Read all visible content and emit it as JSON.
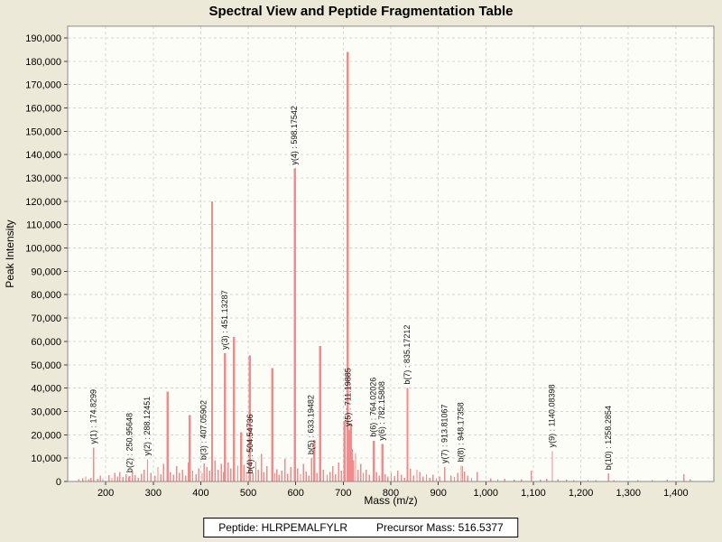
{
  "page": {
    "background": "#ece9d8"
  },
  "header": {
    "title": "Spectral View and Peptide Fragmentation Table"
  },
  "footer": {
    "peptide": "Peptide: HLRPEMALFYLR",
    "precursor": "Precursor Mass: 516.5377"
  },
  "chart_data": {
    "type": "bar",
    "subtype": "mass-spectrum-stick-plot",
    "title": "Spectral View and Peptide Fragmentation Table",
    "xlabel": "Mass (m/z)",
    "ylabel": "Peak Intensity",
    "xlim": [
      120,
      1480
    ],
    "ylim": [
      0,
      195000
    ],
    "x_ticks": [
      200,
      300,
      400,
      500,
      600,
      700,
      800,
      900,
      1000,
      1100,
      1200,
      1300,
      1400
    ],
    "y_ticks": [
      0,
      10000,
      20000,
      30000,
      40000,
      50000,
      60000,
      70000,
      80000,
      90000,
      100000,
      110000,
      120000,
      130000,
      140000,
      150000,
      160000,
      170000,
      180000,
      190000
    ],
    "grid": "dashed",
    "legend": "none",
    "colors": {
      "peak": "#f28b8b",
      "grid": "#d6d6d6",
      "axis": "#8a8a8a",
      "plot_bg": "#fdfdf7",
      "page_bg": "#ece9d8",
      "text": "#000000"
    },
    "labeled_peaks": [
      {
        "ion": "y(1)",
        "label": "y(1) : 174.8299",
        "mz": 174.8299,
        "intensity": 14500
      },
      {
        "ion": "b(2)",
        "label": "b(2) : 250.95648",
        "mz": 250.95648,
        "intensity": 2300
      },
      {
        "ion": "y(2)",
        "label": "y(2) : 288.12451",
        "mz": 288.12451,
        "intensity": 9500
      },
      {
        "ion": "b(3)",
        "label": "b(3) : 407.05902",
        "mz": 407.05902,
        "intensity": 7700
      },
      {
        "ion": "y(3)",
        "label": "y(3) : 451.13287",
        "mz": 451.13287,
        "intensity": 55000
      },
      {
        "ion": "b(4)",
        "label": "b(4) : 504.54736",
        "mz": 504.54736,
        "intensity": 1800
      },
      {
        "ion": "y(4)",
        "label": "y(4) : 598.17542",
        "mz": 598.17542,
        "intensity": 134000
      },
      {
        "ion": "b(5)",
        "label": "b(5) : 633.19482",
        "mz": 633.19482,
        "intensity": 10000
      },
      {
        "ion": "y(5)",
        "label": "y(5) : 711.19885",
        "mz": 711.19885,
        "intensity": 22000
      },
      {
        "ion": "b(6)",
        "label": "b(6) : 764.02026",
        "mz": 764.02026,
        "intensity": 17500
      },
      {
        "ion": "y(6)",
        "label": "y(6) : 782.15808",
        "mz": 782.15808,
        "intensity": 16000
      },
      {
        "ion": "b(7)",
        "label": "b(7) : 835.17212",
        "mz": 835.17212,
        "intensity": 40000
      },
      {
        "ion": "y(7)",
        "label": "y(7) : 913.81067",
        "mz": 913.81067,
        "intensity": 6200
      },
      {
        "ion": "b(8)",
        "label": "b(8) : 948.17358",
        "mz": 948.17358,
        "intensity": 6800
      },
      {
        "ion": "y(9)",
        "label": "y(9) : 1140.08398",
        "mz": 1140.08398,
        "intensity": 13000
      },
      {
        "ion": "b(10)",
        "label": "b(10) : 1258.2854",
        "mz": 1258.2854,
        "intensity": 3400
      }
    ],
    "unlabeled_peaks": [
      [
        143,
        900
      ],
      [
        152,
        1400
      ],
      [
        158,
        2200
      ],
      [
        164,
        1000
      ],
      [
        169,
        1600
      ],
      [
        183,
        1100
      ],
      [
        189,
        2600
      ],
      [
        194,
        1300
      ],
      [
        207,
        2800
      ],
      [
        213,
        1600
      ],
      [
        219,
        3600
      ],
      [
        225,
        2200
      ],
      [
        230,
        4100
      ],
      [
        236,
        1900
      ],
      [
        243,
        3100
      ],
      [
        249,
        2100
      ],
      [
        256,
        4600
      ],
      [
        262,
        2700
      ],
      [
        269,
        1600
      ],
      [
        275,
        3300
      ],
      [
        281,
        5100
      ],
      [
        295,
        3600
      ],
      [
        304,
        2600
      ],
      [
        310,
        6100
      ],
      [
        316,
        3100
      ],
      [
        322,
        7600
      ],
      [
        330,
        38500
      ],
      [
        336,
        4100
      ],
      [
        343,
        2900
      ],
      [
        349,
        6600
      ],
      [
        355,
        3600
      ],
      [
        362,
        5100
      ],
      [
        368,
        2600
      ],
      [
        374,
        8100
      ],
      [
        377,
        28500
      ],
      [
        383,
        4600
      ],
      [
        390,
        3100
      ],
      [
        396,
        5600
      ],
      [
        403,
        3600
      ],
      [
        413,
        6100
      ],
      [
        419,
        4600
      ],
      [
        424,
        120000
      ],
      [
        430,
        9100
      ],
      [
        437,
        5100
      ],
      [
        443,
        7600
      ],
      [
        448,
        4100
      ],
      [
        458,
        8200
      ],
      [
        463,
        5600
      ],
      [
        470,
        62000
      ],
      [
        478,
        6700
      ],
      [
        485,
        21000
      ],
      [
        491,
        7100
      ],
      [
        496,
        4100
      ],
      [
        503,
        54000
      ],
      [
        510,
        3600
      ],
      [
        516,
        8600
      ],
      [
        521,
        5100
      ],
      [
        528,
        11800
      ],
      [
        533,
        4100
      ],
      [
        539,
        6600
      ],
      [
        551,
        48500
      ],
      [
        556,
        3600
      ],
      [
        560,
        5300
      ],
      [
        565,
        2900
      ],
      [
        571,
        4600
      ],
      [
        577,
        9600
      ],
      [
        583,
        3300
      ],
      [
        590,
        6100
      ],
      [
        604,
        5600
      ],
      [
        610,
        3100
      ],
      [
        616,
        7600
      ],
      [
        622,
        4300
      ],
      [
        628,
        2600
      ],
      [
        639,
        17800
      ],
      [
        645,
        3600
      ],
      [
        651,
        58000
      ],
      [
        658,
        5100
      ],
      [
        666,
        2900
      ],
      [
        672,
        4100
      ],
      [
        678,
        6600
      ],
      [
        684,
        3100
      ],
      [
        690,
        8100
      ],
      [
        696,
        4600
      ],
      [
        703,
        26000
      ],
      [
        709,
        184000
      ],
      [
        716,
        25000
      ],
      [
        719,
        14000
      ],
      [
        722,
        9100
      ],
      [
        726,
        12100
      ],
      [
        731,
        5100
      ],
      [
        737,
        7600
      ],
      [
        742,
        3600
      ],
      [
        748,
        5100
      ],
      [
        755,
        2900
      ],
      [
        770,
        4100
      ],
      [
        776,
        2600
      ],
      [
        788,
        3100
      ],
      [
        794,
        2100
      ],
      [
        801,
        3600
      ],
      [
        808,
        2300
      ],
      [
        815,
        4600
      ],
      [
        822,
        2900
      ],
      [
        829,
        1600
      ],
      [
        841,
        5400
      ],
      [
        848,
        2600
      ],
      [
        855,
        5100
      ],
      [
        861,
        4100
      ],
      [
        868,
        2100
      ],
      [
        875,
        3100
      ],
      [
        882,
        1600
      ],
      [
        889,
        2900
      ],
      [
        896,
        1300
      ],
      [
        903,
        2100
      ],
      [
        927,
        2600
      ],
      [
        934,
        1900
      ],
      [
        941,
        3600
      ],
      [
        951,
        6600
      ],
      [
        955,
        4300
      ],
      [
        962,
        2600
      ],
      [
        970,
        1600
      ],
      [
        982,
        4100
      ],
      [
        1010,
        1300
      ],
      [
        1025,
        900
      ],
      [
        1040,
        1100
      ],
      [
        1060,
        700
      ],
      [
        1075,
        1000
      ],
      [
        1096,
        4600
      ],
      [
        1115,
        800
      ],
      [
        1128,
        1100
      ],
      [
        1152,
        900
      ],
      [
        1170,
        700
      ],
      [
        1185,
        600
      ],
      [
        1215,
        800
      ],
      [
        1232,
        600
      ],
      [
        1270,
        500
      ],
      [
        1320,
        600
      ],
      [
        1350,
        500
      ],
      [
        1382,
        700
      ],
      [
        1417,
        3100
      ],
      [
        1430,
        900
      ]
    ]
  }
}
